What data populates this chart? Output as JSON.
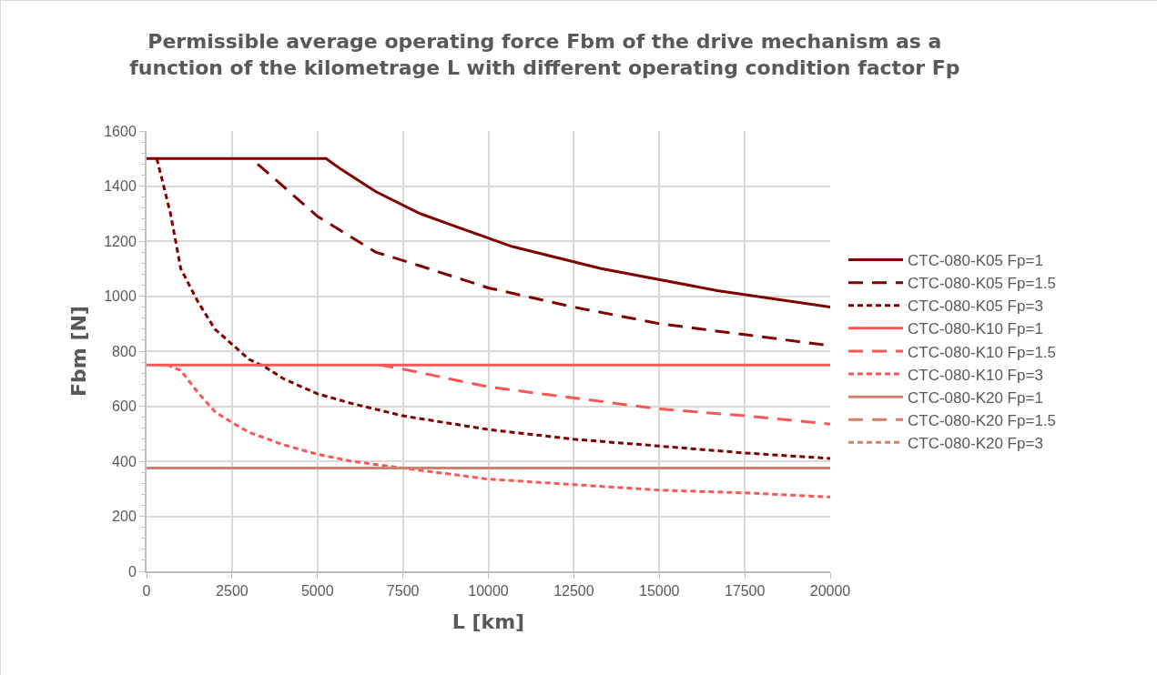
{
  "chart_data": {
    "type": "line",
    "title": "Permissible average operating force Fbm of the drive mechanism as a\nfunction of the kilometrage L with different operating condition factor Fp",
    "xlabel": "L [km]",
    "ylabel": "Fbm [N]",
    "xlim": [
      0,
      20000
    ],
    "xticks": [
      0,
      2500,
      5000,
      7500,
      10000,
      12500,
      15000,
      17500,
      20000
    ],
    "ylim": [
      0,
      1600
    ],
    "yticks": [
      0,
      200,
      400,
      600,
      800,
      1000,
      1200,
      1400,
      1600
    ],
    "grid": true,
    "legend": "right",
    "marker": "none",
    "series": [
      {
        "name": "CTC-080-K05 Fp=1",
        "color": "#800000",
        "line_style": "solid",
        "x": [
          0,
          5250,
          5700,
          6700,
          8000,
          9000,
          10700,
          13300,
          16700,
          20000
        ],
        "values": [
          1500,
          1500,
          1460,
          1380,
          1300,
          1255,
          1180,
          1100,
          1020,
          960
        ]
      },
      {
        "name": "CTC-080-K05 Fp=1.5",
        "color": "#800000",
        "line_style": "dashed",
        "x": [
          3250,
          5000,
          6700,
          8000,
          10000,
          12500,
          15000,
          17500,
          20000
        ],
        "values": [
          1480,
          1290,
          1160,
          1110,
          1030,
          960,
          900,
          860,
          820
        ]
      },
      {
        "name": "CTC-080-K05 Fp=3",
        "color": "#800000",
        "line_style": "dotted",
        "x": [
          300,
          700,
          1000,
          1500,
          2000,
          3000,
          3500,
          4000,
          5000,
          6000,
          7500,
          10000,
          12500,
          15000,
          17500,
          20000
        ],
        "values": [
          1500,
          1300,
          1100,
          980,
          880,
          770,
          740,
          700,
          645,
          610,
          565,
          515,
          480,
          455,
          430,
          410
        ]
      },
      {
        "name": "CTC-080-K10 Fp=1",
        "color": "#ff5555",
        "line_style": "solid",
        "x": [
          0,
          20000
        ],
        "values": [
          750,
          750
        ]
      },
      {
        "name": "CTC-080-K10 Fp=1.5",
        "color": "#ff5555",
        "line_style": "dashed",
        "x": [
          6800,
          7500,
          10000,
          12500,
          15000,
          17500,
          20000
        ],
        "values": [
          750,
          735,
          670,
          630,
          590,
          565,
          535
        ]
      },
      {
        "name": "CTC-080-K10 Fp=3",
        "color": "#ff5555",
        "line_style": "dotted",
        "x": [
          600,
          1000,
          1500,
          2000,
          2500,
          3000,
          4000,
          5000,
          6000,
          7500,
          10000,
          12500,
          15000,
          17500,
          20000
        ],
        "values": [
          750,
          730,
          650,
          580,
          540,
          505,
          460,
          425,
          400,
          375,
          335,
          315,
          295,
          285,
          270
        ]
      },
      {
        "name": "CTC-080-K20 Fp=1",
        "color": "#d4806c",
        "line_style": "solid",
        "x": [
          0,
          20000
        ],
        "values": [
          375,
          375
        ]
      },
      {
        "name": "CTC-080-K20 Fp=1.5",
        "color": "#d4806c",
        "line_style": "dashed"
      },
      {
        "name": "CTC-080-K20 Fp=3",
        "color": "#d4806c",
        "line_style": "dotted"
      }
    ]
  }
}
